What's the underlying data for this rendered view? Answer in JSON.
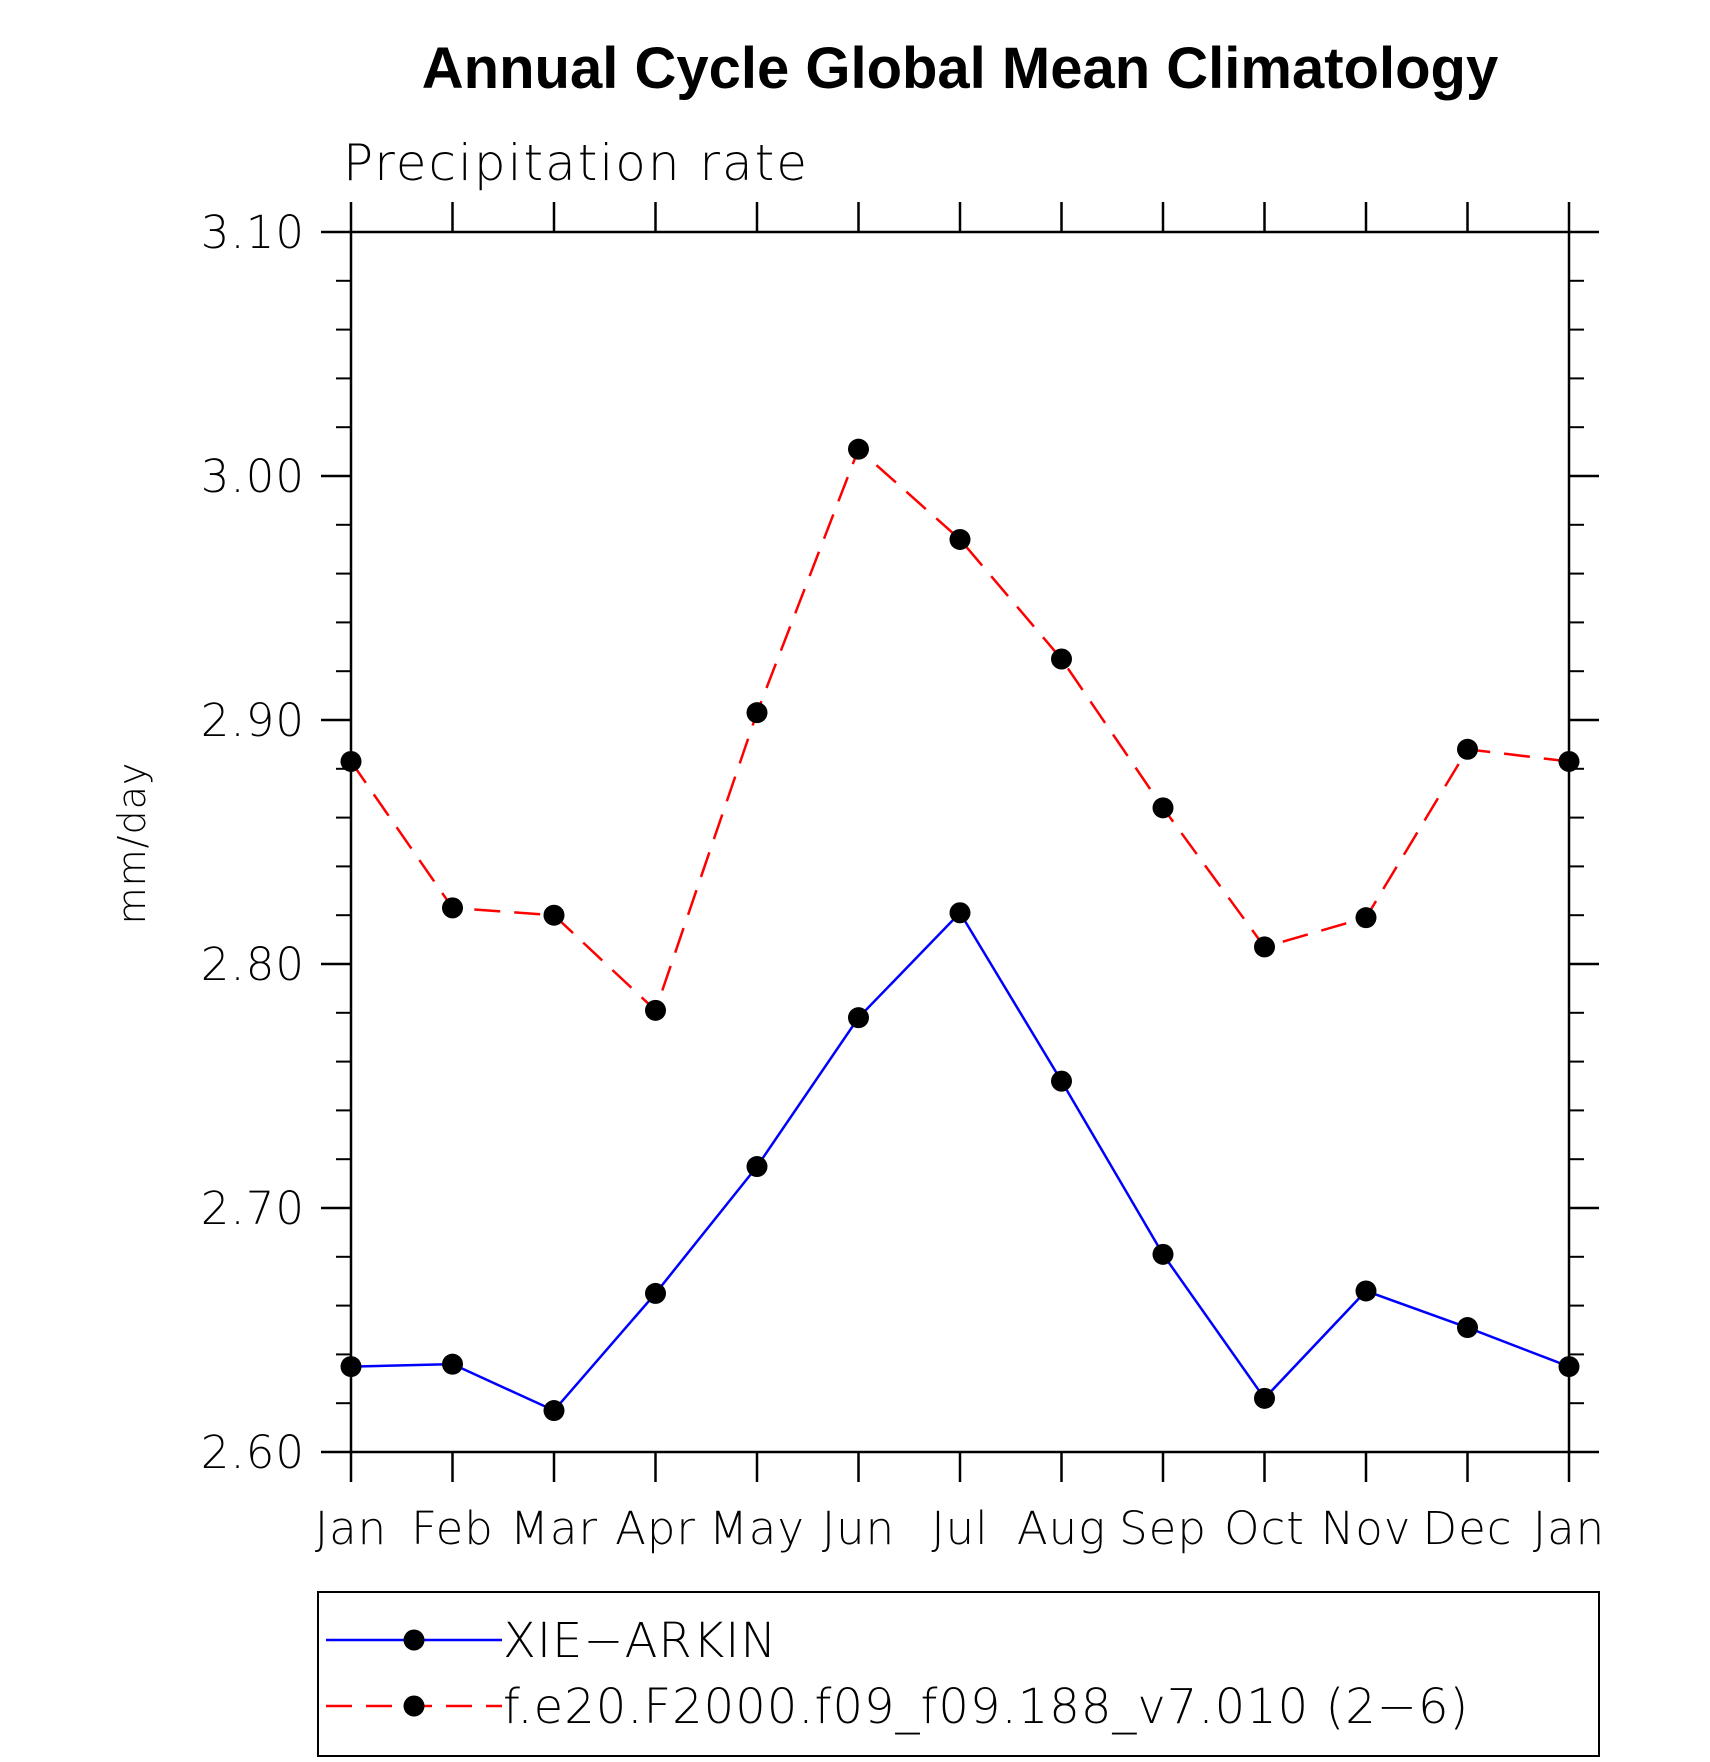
{
  "chart_data": {
    "type": "line",
    "title": "Annual Cycle Global Mean Climatology",
    "subtitle": "Precipitation rate",
    "xlabel": "",
    "ylabel": "mm/day",
    "ylim": [
      2.6,
      3.1
    ],
    "y_ticks": [
      "2.60",
      "2.70",
      "2.80",
      "2.90",
      "3.00",
      "3.10"
    ],
    "categories": [
      "Jan",
      "Feb",
      "Mar",
      "Apr",
      "May",
      "Jun",
      "Jul",
      "Aug",
      "Sep",
      "Oct",
      "Nov",
      "Dec",
      "Jan"
    ],
    "grid": false,
    "legend_position": "bottom",
    "series": [
      {
        "name": "XIE−ARKIN",
        "color": "#0000ff",
        "dash": "solid",
        "values": [
          2.635,
          2.636,
          2.617,
          2.665,
          2.717,
          2.778,
          2.821,
          2.752,
          2.681,
          2.622,
          2.666,
          2.651,
          2.635
        ]
      },
      {
        "name": "f.e20.F2000.f09_f09.188_v7.010 (2−6)",
        "color": "#ff0000",
        "dash": "dashed",
        "values": [
          2.883,
          2.823,
          2.82,
          2.781,
          2.903,
          3.011,
          2.974,
          2.925,
          2.864,
          2.807,
          2.819,
          2.888,
          2.883
        ]
      }
    ]
  }
}
